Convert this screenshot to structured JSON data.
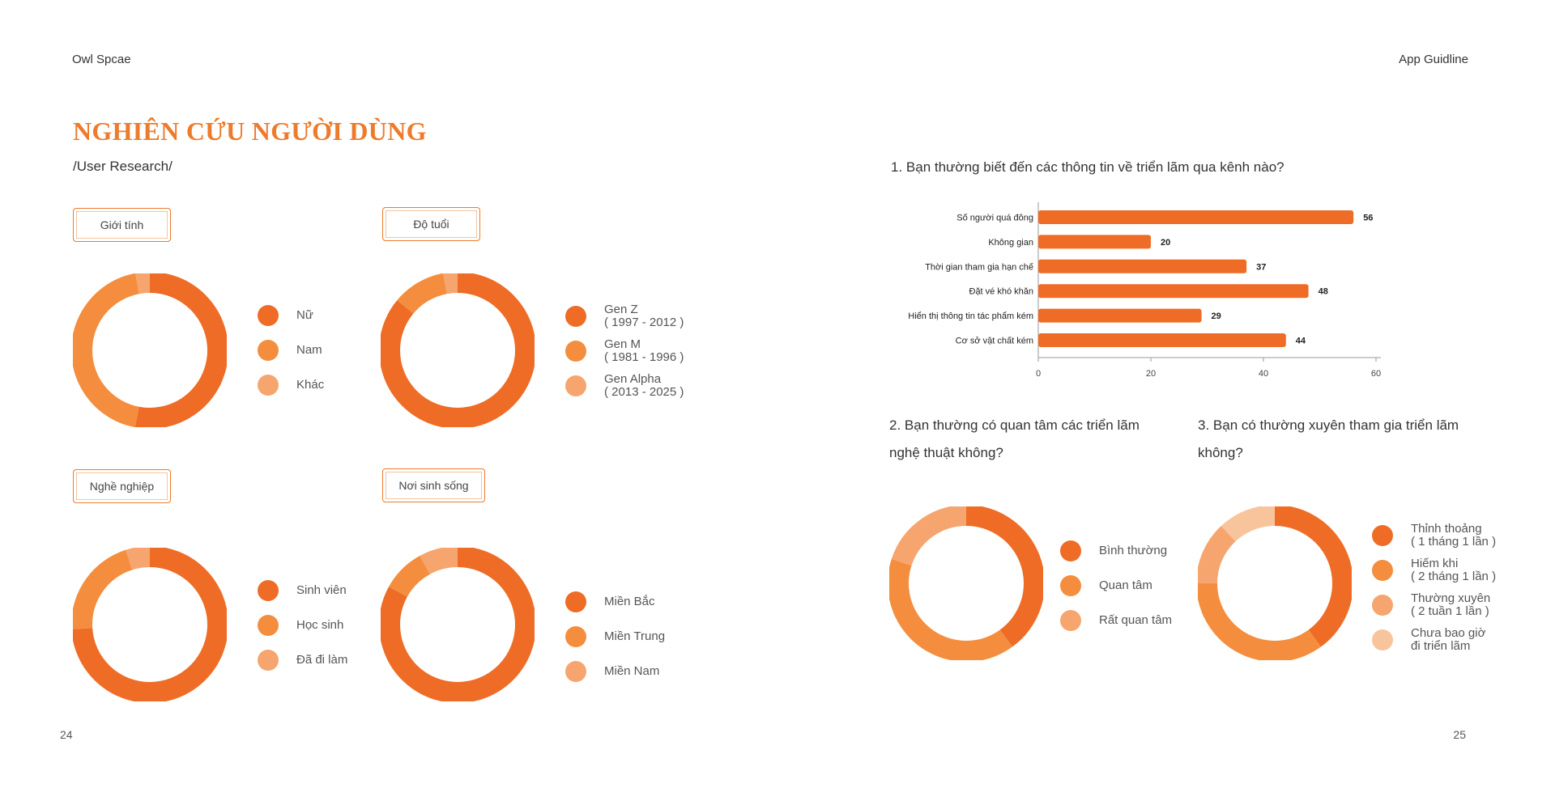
{
  "header": {
    "left": "Owl Spcae",
    "right": "App Guidline"
  },
  "page_left": {
    "title": "NGHIÊN CỨU NGƯỜI DÙNG",
    "subtitle": "/User Research/",
    "page_number": "24",
    "groups": [
      {
        "tag": "Giới tính",
        "legend": [
          {
            "label": "Nữ"
          },
          {
            "label": "Nam"
          },
          {
            "label": "Khác"
          }
        ]
      },
      {
        "tag": "Độ tuổi",
        "legend": [
          {
            "label": "Gen Z",
            "sub": "( 1997 - 2012 )"
          },
          {
            "label": "Gen M",
            "sub": "( 1981 - 1996 )"
          },
          {
            "label": "Gen Alpha",
            "sub": "( 2013 - 2025 )"
          }
        ]
      },
      {
        "tag": "Nghề nghiệp",
        "legend": [
          {
            "label": "Sinh viên"
          },
          {
            "label": "Học sinh"
          },
          {
            "label": "Đã đi làm"
          }
        ]
      },
      {
        "tag": "Nơi sinh sống",
        "legend": [
          {
            "label": "Miền Bắc"
          },
          {
            "label": "Miền Trung"
          },
          {
            "label": "Miền Nam"
          }
        ]
      }
    ]
  },
  "page_right": {
    "page_number": "25",
    "q1": "1. Bạn thường biết đến các thông tin về triển lãm qua kênh nào?",
    "q2_line1": "2. Bạn thường có quan tâm các triển lãm",
    "q2_line2": "nghệ thuật không?",
    "q3_line1": "3. Bạn có thường xuyên tham gia triển lãm",
    "q3_line2": "không?",
    "q2_legend": [
      {
        "label": "Bình thường"
      },
      {
        "label": "Quan tâm"
      },
      {
        "label": "Rất quan tâm"
      }
    ],
    "q3_legend": [
      {
        "label": "Thỉnh thoảng",
        "sub": "( 1 tháng 1 lần )"
      },
      {
        "label": "Hiếm khi",
        "sub": "( 2 tháng 1 lần )"
      },
      {
        "label": "Thường xuyên",
        "sub": "( 2 tuần 1 lần )"
      },
      {
        "label": "Chưa bao giờ",
        "sub": "đi triển lãm"
      }
    ]
  },
  "colors": {
    "primary": "#ee6c26",
    "secondary": "#f48e3e",
    "tertiary": "#f6a56e",
    "quaternary": "#f8c49c",
    "accent_text": "#ee7b2c"
  },
  "chart_data": [
    {
      "type": "pie",
      "title": "",
      "labels": [
        "Nữ",
        "Nam",
        "Khác"
      ],
      "values": [
        53,
        44,
        3
      ]
    },
    {
      "type": "pie",
      "title": "",
      "labels": [
        "Gen Z",
        "Gen M",
        "Gen Alpha"
      ],
      "values": [
        86,
        11,
        3
      ]
    },
    {
      "type": "pie",
      "title": "",
      "labels": [
        "Sinh viên",
        "Học sinh",
        "Đã đi làm"
      ],
      "values": [
        74,
        21,
        5
      ]
    },
    {
      "type": "pie",
      "title": "",
      "labels": [
        "Miền Bắc",
        "Miền Trung",
        "Miền Nam"
      ],
      "values": [
        83,
        9,
        8
      ]
    },
    {
      "type": "bar",
      "orientation": "horizontal",
      "title": "",
      "categories": [
        "Số người quá đông",
        "Không gian",
        "Thời gian tham gia hạn chế",
        "Đặt vé khó khăn",
        "Hiển thị thông tin tác phẩm kém",
        "Cơ sở vật chất kém"
      ],
      "values": [
        56,
        20,
        37,
        48,
        29,
        44
      ],
      "xlim": [
        0,
        60
      ],
      "xticks": [
        0,
        20,
        40,
        60
      ],
      "grid": false
    },
    {
      "type": "pie",
      "title": "",
      "labels": [
        "Bình thường",
        "Quan tâm",
        "Rất quan tâm"
      ],
      "values": [
        40,
        40,
        20
      ]
    },
    {
      "type": "pie",
      "title": "",
      "labels": [
        "Thỉnh thoảng",
        "Hiếm khi",
        "Thường xuyên",
        "Chưa bao giờ"
      ],
      "values": [
        40,
        35,
        13,
        12
      ]
    }
  ]
}
